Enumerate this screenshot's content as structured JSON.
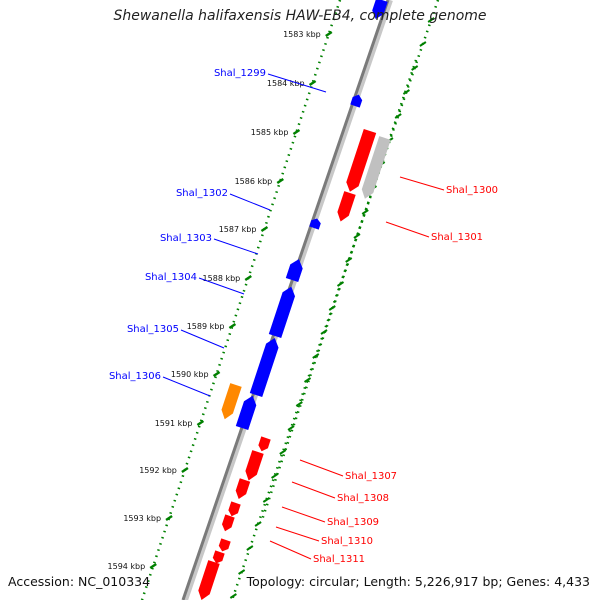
{
  "title": "Shewanella halifaxensis HAW-EB4, complete genome",
  "footer": {
    "accession": "Accession: NC_010334",
    "summary": "Topology: circular; Length: 5,226,917 bp; Genes: 4,433"
  },
  "colors": {
    "forward_genes": "#ff0000",
    "reverse_genes": "#0000ff",
    "pseudo_gene": "#c0c0c0",
    "other_gene": "#ff8800",
    "ticks": "#008000"
  },
  "ticks": [
    "1583 kbp",
    "1584 kbp",
    "1585 kbp",
    "1586 kbp",
    "1587 kbp",
    "1588 kbp",
    "1589 kbp",
    "1590 kbp",
    "1591 kbp",
    "1592 kbp",
    "1593 kbp",
    "1594 kbp"
  ],
  "genes_left": [
    "Shal_1299",
    "Shal_1302",
    "Shal_1303",
    "Shal_1304",
    "Shal_1305",
    "Shal_1306"
  ],
  "genes_right": [
    "Shal_1300",
    "Shal_1301",
    "Shal_1307",
    "Shal_1308",
    "Shal_1309",
    "Shal_1310",
    "Shal_1311"
  ]
}
